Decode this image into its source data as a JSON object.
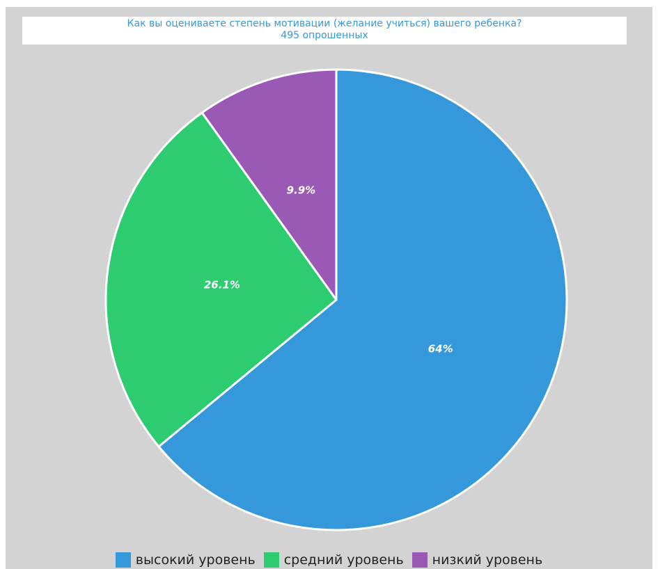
{
  "chart_data": {
    "type": "pie",
    "title": "Как вы оцениваете степень мотивации (желание учиться) вашего ребенка?",
    "subtitle": "495 опрошенных",
    "slices": [
      {
        "label": "высокий уровень",
        "value": 64,
        "value_label": "64%",
        "color": "#3598db"
      },
      {
        "label": "средний уровень",
        "value": 26.1,
        "value_label": "26.1%",
        "color": "#2ecc71"
      },
      {
        "label": "низкий уровень",
        "value": 9.9,
        "value_label": "9.9%",
        "color": "#9b59b6"
      }
    ],
    "legend_position": "bottom"
  },
  "colors": {
    "background": "#d3d3d3",
    "title": "#3598db",
    "slice_border": "#ffffff",
    "data_label": "#ffffff"
  }
}
